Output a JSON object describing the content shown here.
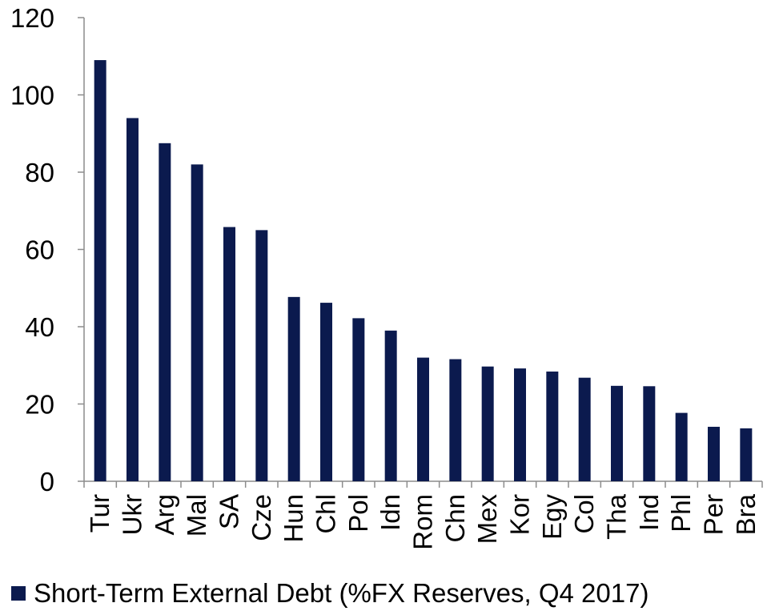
{
  "colors": {
    "bar": "#0b1a4e",
    "axis": "#8c8c8c",
    "text": "#000000"
  },
  "chart_data": {
    "type": "bar",
    "categories": [
      "Tur",
      "Ukr",
      "Arg",
      "Mal",
      "SA",
      "Cze",
      "Hun",
      "Chl",
      "Pol",
      "Idn",
      "Rom",
      "Chn",
      "Mex",
      "Kor",
      "Egy",
      "Col",
      "Tha",
      "Ind",
      "Phl",
      "Per",
      "Bra"
    ],
    "series": [
      {
        "name": "Short-Term External Debt (%FX Reserves, Q4 2017)",
        "values": [
          109,
          94,
          87.5,
          82,
          65.8,
          65,
          47.7,
          46.2,
          42.2,
          39,
          32,
          31.6,
          29.7,
          29.2,
          28.4,
          26.8,
          24.7,
          24.6,
          17.7,
          14.1,
          13.7
        ]
      }
    ],
    "title": "",
    "xlabel": "",
    "ylabel": "",
    "ylim": [
      0,
      120
    ],
    "yticks": [
      "0",
      "20",
      "40",
      "60",
      "80",
      "100",
      "120"
    ],
    "grid": false,
    "legend_position": "bottom-left"
  }
}
